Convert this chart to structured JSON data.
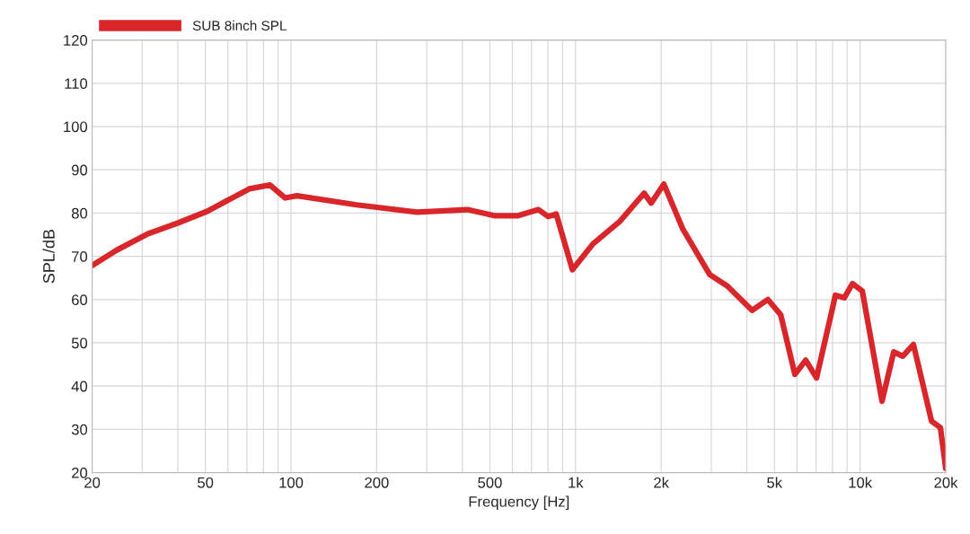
{
  "chart_data": {
    "type": "line",
    "xlabel": "Frequency [Hz]",
    "ylabel": "SPL/dB",
    "log": "x",
    "grid": true,
    "legend": "top left",
    "marker": "none",
    "line_style": "solid",
    "xlim": [
      20,
      20000
    ],
    "ylim": [
      20,
      120
    ],
    "xticks": [
      20,
      {
        "value": 30,
        "label": null
      },
      {
        "value": 40,
        "label": null
      },
      50,
      {
        "value": 60,
        "label": null
      },
      {
        "value": 70,
        "label": null
      },
      {
        "value": 80,
        "label": null
      },
      {
        "value": 90,
        "label": null
      },
      100,
      200,
      {
        "value": 300,
        "label": null
      },
      {
        "value": 400,
        "label": null
      },
      500,
      {
        "value": 600,
        "label": null
      },
      {
        "value": 700,
        "label": null
      },
      {
        "value": 800,
        "label": null
      },
      {
        "value": 900,
        "label": null
      },
      {
        "value": 1000,
        "label": "1k"
      },
      {
        "value": 2000,
        "label": "2k"
      },
      {
        "value": 3000,
        "label": null
      },
      {
        "value": 4000,
        "label": null
      },
      {
        "value": 5000,
        "label": "5k"
      },
      {
        "value": 6000,
        "label": null
      },
      {
        "value": 7000,
        "label": null
      },
      {
        "value": 8000,
        "label": null
      },
      {
        "value": 9000,
        "label": null
      },
      {
        "value": 10000,
        "label": "10k"
      },
      {
        "value": 20000,
        "label": "20k"
      }
    ],
    "yticks": [
      20,
      30,
      40,
      50,
      60,
      70,
      80,
      90,
      100,
      110,
      120
    ],
    "series": [
      {
        "name": "SUB 8inch SPL",
        "color": "#d9262b",
        "x": [
          20,
          24.5,
          31.4,
          40,
          50.7,
          71.3,
          84.3,
          95.4,
          105,
          170,
          277,
          417,
          518,
          605,
          629,
          740,
          801,
          855,
          975,
          1152,
          1432,
          1742,
          1845,
          2043,
          2382,
          2960,
          3420,
          4170,
          4740,
          5260,
          5900,
          6440,
          7030,
          8190,
          8800,
          9400,
          10180,
          11940,
          13130,
          14120,
          15400,
          17830,
          19150,
          20000
        ],
        "values": [
          67.9,
          71.5,
          75.2,
          77.7,
          80.4,
          85.6,
          86.5,
          83.5,
          84,
          81.9,
          80.2,
          80.8,
          79.4,
          79.4,
          79.4,
          80.8,
          79.2,
          79.8,
          66.9,
          72.9,
          78.1,
          84.6,
          82.3,
          86.7,
          76.3,
          65.8,
          63.1,
          57.5,
          60,
          56.5,
          42.7,
          46,
          41.9,
          61,
          60.4,
          63.7,
          62,
          36.5,
          47.9,
          46.9,
          49.6,
          31.9,
          30.4,
          21
        ]
      }
    ]
  }
}
